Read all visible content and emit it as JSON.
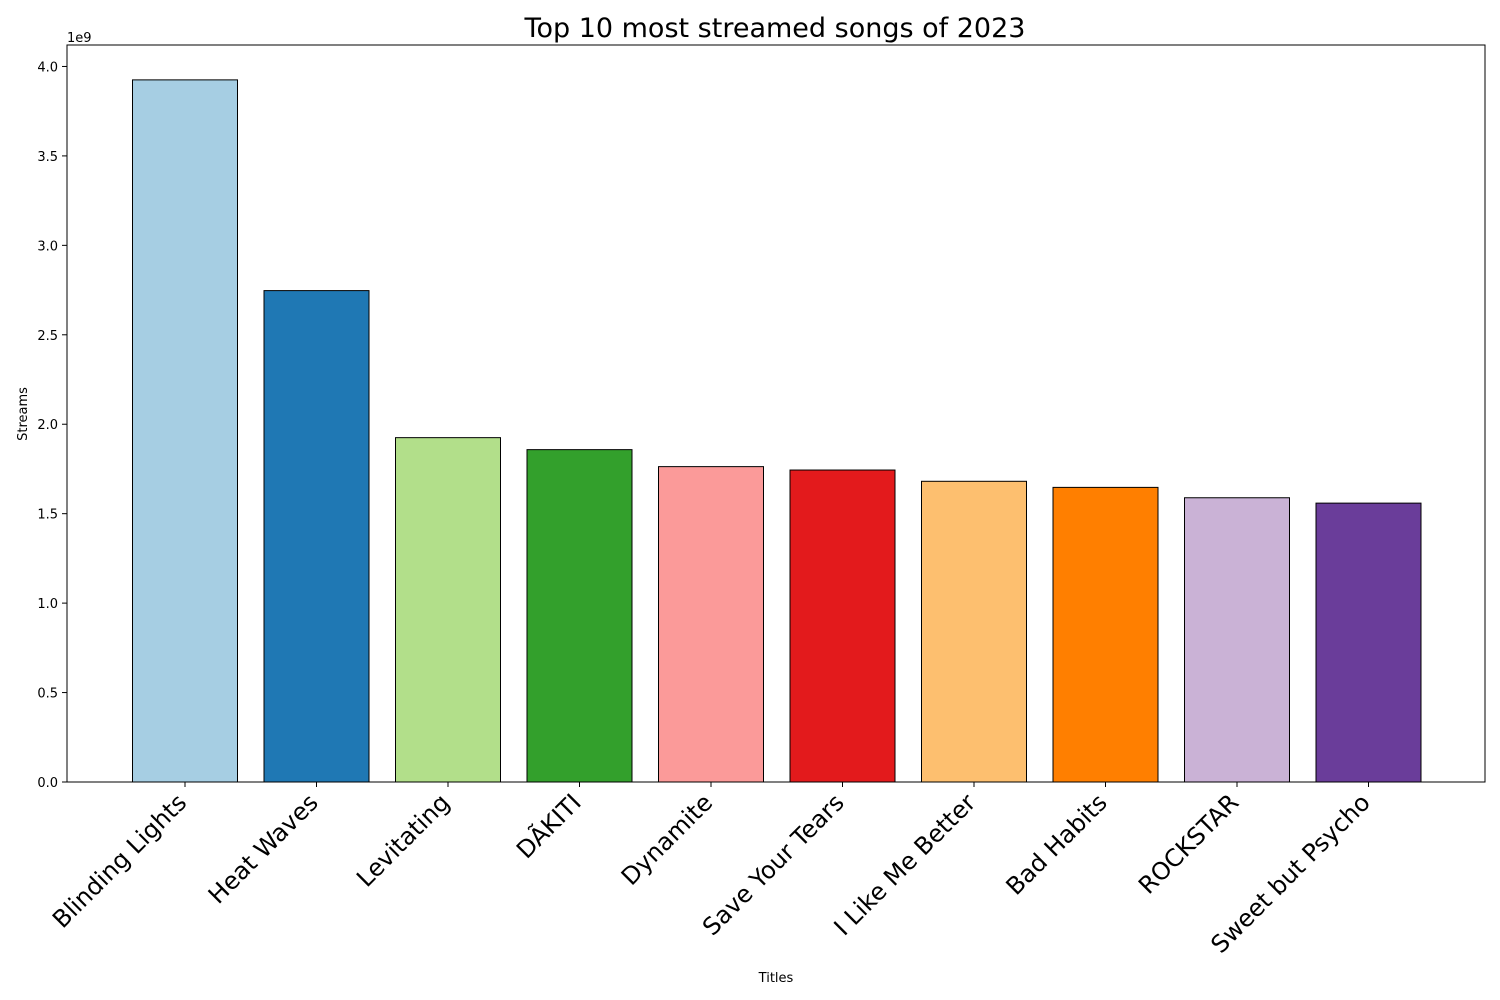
{
  "chart_data": {
    "type": "bar",
    "title": "Top 10 most streamed songs of 2023",
    "xlabel": "Titles",
    "ylabel": "Streams",
    "offset_label": "1e9",
    "categories": [
      "Blinding Lights",
      "Heat Waves",
      "Levitating",
      "DÃ\u001fKITI",
      "Dynamite",
      "Save Your Tears",
      "I Like Me Better",
      "Bad Habits",
      "ROCKSTAR",
      "Sweet but Psycho"
    ],
    "values": [
      3925,
      2747,
      1925,
      1858,
      1763,
      1744,
      1681,
      1647,
      1589,
      1559
    ],
    "value_unit_note": "values in millions of streams; axis shows ×1e9",
    "colors": [
      "#a6cee3",
      "#1f78b4",
      "#b2df8a",
      "#33a02c",
      "#fb9a99",
      "#e31a1c",
      "#fdbf6f",
      "#ff7f00",
      "#cab2d6",
      "#6a3d9a"
    ],
    "yticks": [
      "0.0",
      "0.5",
      "1.0",
      "1.5",
      "2.0",
      "2.5",
      "3.0",
      "3.5",
      "4.0"
    ],
    "ylim": [
      0,
      4.12
    ],
    "grid": false,
    "legend": "none"
  }
}
